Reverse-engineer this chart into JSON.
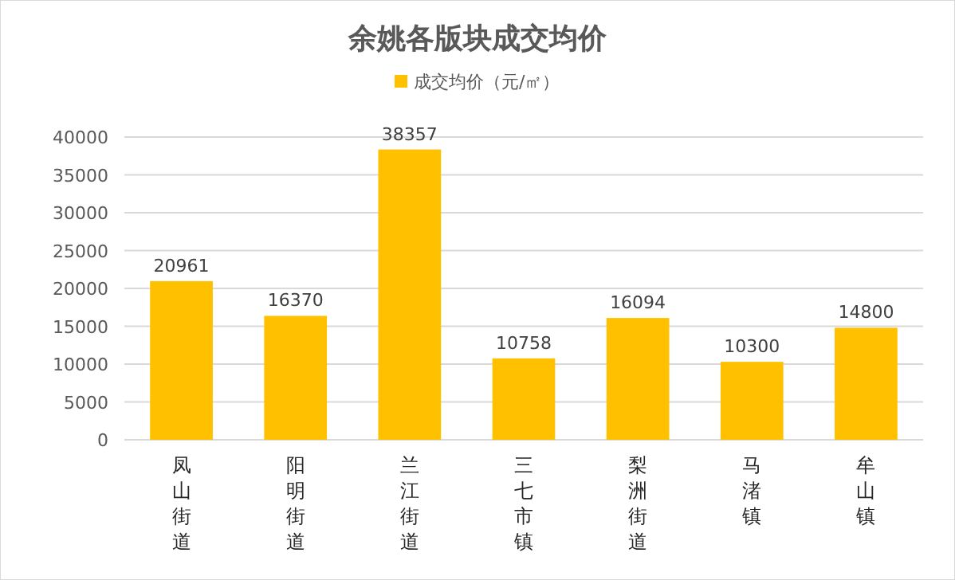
{
  "chart_data": {
    "type": "bar",
    "title": "余姚各版块成交均价",
    "categories": [
      "凤山街道",
      "阳明街道",
      "兰江街道",
      "三七市镇",
      "梨洲街道",
      "马渚镇",
      "牟山镇"
    ],
    "series": [
      {
        "name": "成交均价（元/㎡）",
        "color": "#ffc000",
        "values": [
          20961,
          16370,
          38357,
          10758,
          16094,
          10300,
          14800
        ]
      }
    ],
    "ylim": [
      0,
      40000
    ],
    "yticks": [
      0,
      5000,
      10000,
      15000,
      20000,
      25000,
      30000,
      35000,
      40000
    ],
    "grid": "y",
    "legend": "top",
    "data_labels": true
  }
}
